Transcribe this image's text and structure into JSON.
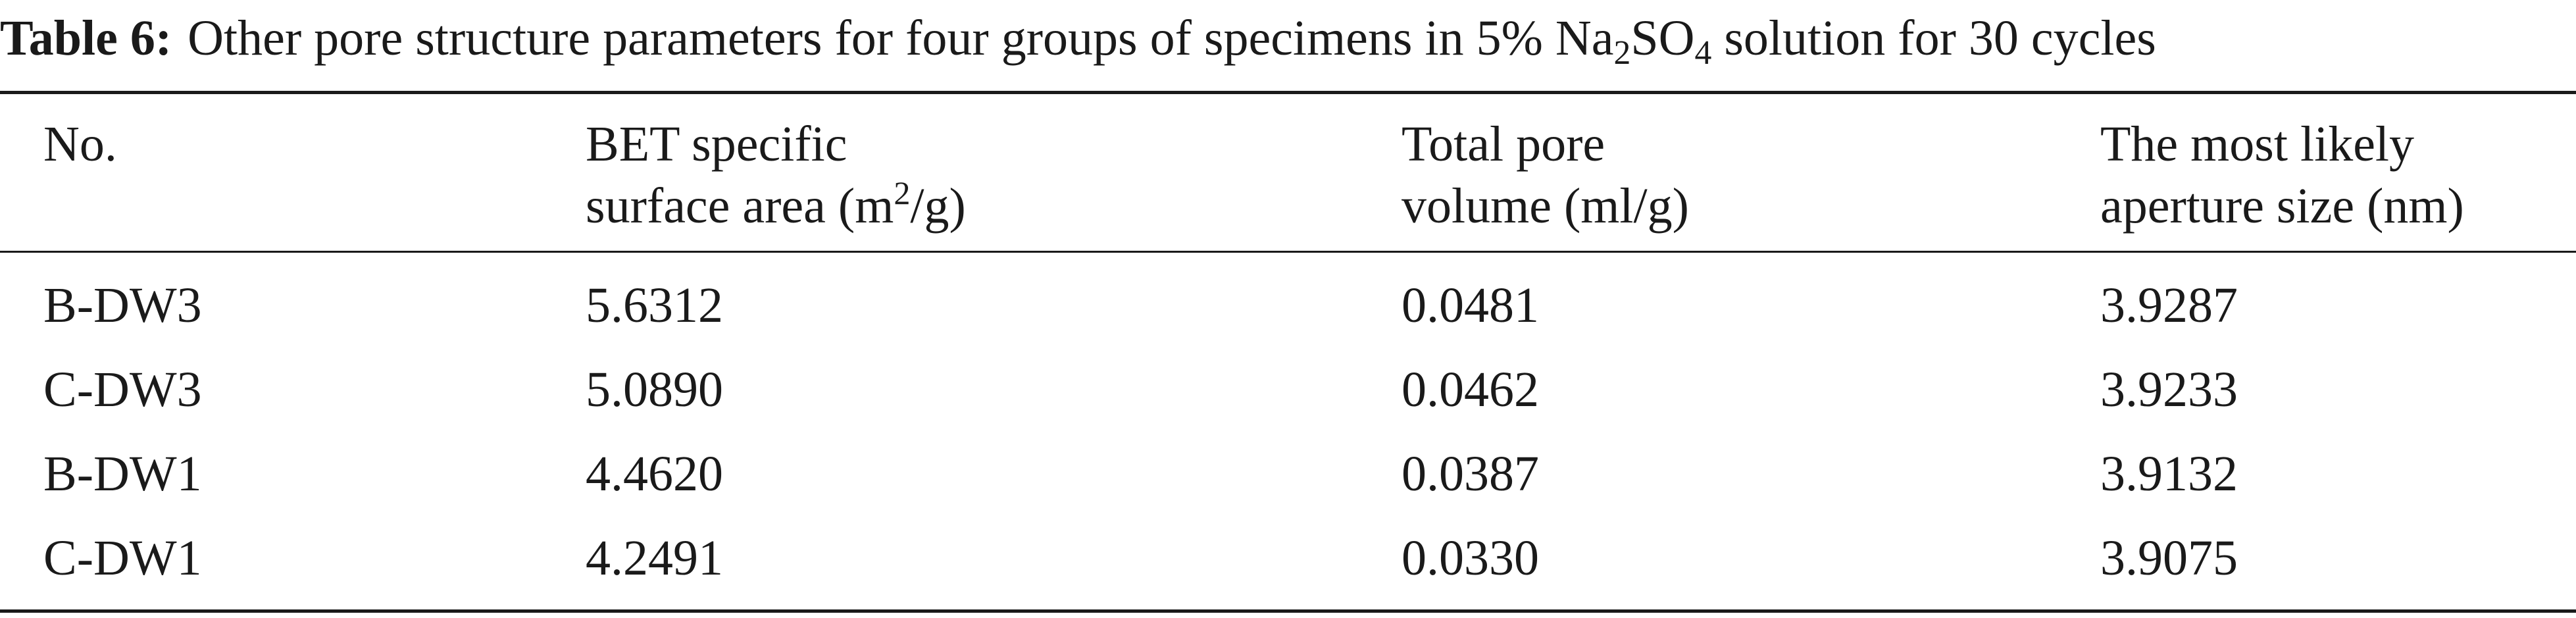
{
  "caption": {
    "label": "Table 6:",
    "text_before": "Other pore structure parameters for four groups of specimens in 5% Na",
    "sub1": "2",
    "text_mid": "SO",
    "sub2": "4",
    "text_after": " solution for 30 cycles"
  },
  "headers": {
    "no": "No.",
    "bet_line1": "BET specific",
    "bet_line2_pre": "surface area (m",
    "bet_sup": "2",
    "bet_line2_post": "/g)",
    "tpv_line1": "Total pore",
    "tpv_line2": "volume (ml/g)",
    "aps_line1": "The most likely",
    "aps_line2": "aperture size (nm)"
  },
  "rows": [
    {
      "no": "B-DW3",
      "bet": "5.6312",
      "tpv": "0.0481",
      "aps": "3.9287"
    },
    {
      "no": "C-DW3",
      "bet": "5.0890",
      "tpv": "0.0462",
      "aps": "3.9233"
    },
    {
      "no": "B-DW1",
      "bet": "4.4620",
      "tpv": "0.0387",
      "aps": "3.9132"
    },
    {
      "no": "C-DW1",
      "bet": "4.2491",
      "tpv": "0.0330",
      "aps": "3.9075"
    }
  ]
}
